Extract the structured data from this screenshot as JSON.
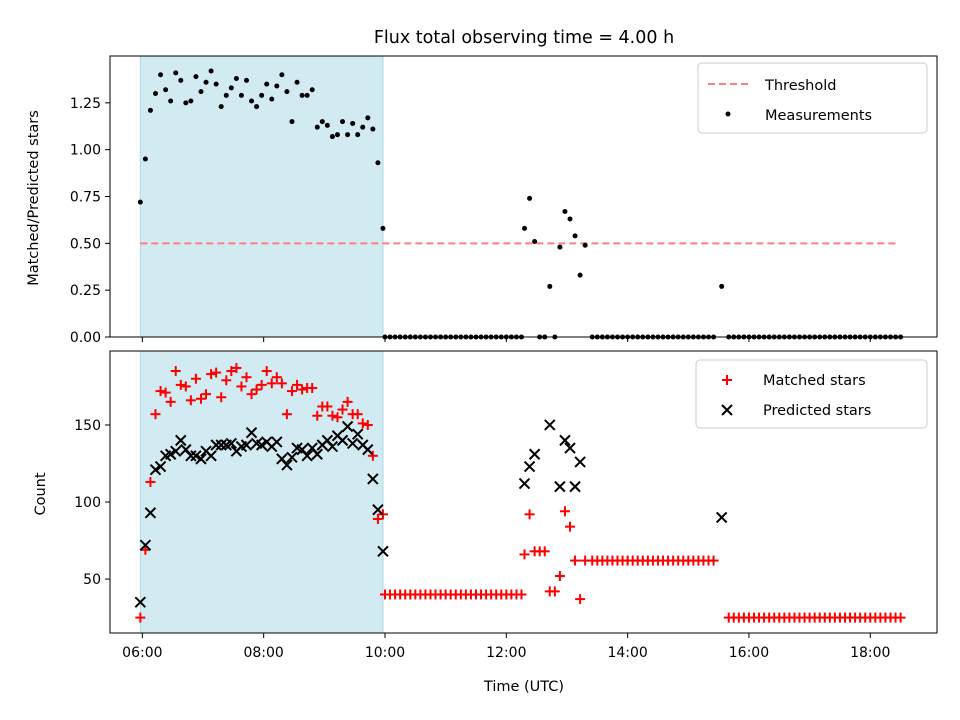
{
  "colors": {
    "shade": "#add8e6",
    "threshold": "#ff7f7f",
    "matched": "#ff0000",
    "predicted": "#000000",
    "measurement": "#000000"
  },
  "chart_data": [
    {
      "type": "scatter",
      "title": "Flux total observing time = 4.00 h",
      "ylabel": "Matched/Predicted stars",
      "xlabel": "",
      "xlim": [
        "05:28",
        "19:06"
      ],
      "ylim": [
        0,
        1.5
      ],
      "yticks": [
        "0.00",
        "0.25",
        "0.50",
        "0.75",
        "1.00",
        "1.25"
      ],
      "grid": false,
      "legend": "top-right",
      "shaded_span": [
        "05:58",
        "09:58"
      ],
      "threshold": {
        "name": "Threshold",
        "value": 0.5,
        "from": "05:58",
        "to": "18:28"
      },
      "series": [
        {
          "name": "Measurements",
          "x": [
            "05:58",
            "06:03",
            "06:08",
            "06:13",
            "06:18",
            "06:23",
            "06:28",
            "06:33",
            "06:38",
            "06:43",
            "06:48",
            "06:53",
            "06:58",
            "07:03",
            "07:08",
            "07:13",
            "07:18",
            "07:23",
            "07:28",
            "07:33",
            "07:38",
            "07:43",
            "07:48",
            "07:53",
            "07:58",
            "08:03",
            "08:08",
            "08:13",
            "08:18",
            "08:23",
            "08:28",
            "08:33",
            "08:38",
            "08:43",
            "08:48",
            "08:53",
            "08:58",
            "09:03",
            "09:08",
            "09:13",
            "09:18",
            "09:23",
            "09:28",
            "09:33",
            "09:38",
            "09:43",
            "09:48",
            "09:53",
            "09:58",
            "12:18",
            "12:23",
            "12:28",
            "12:33",
            "12:38",
            "12:43",
            "12:48",
            "12:53",
            "12:58",
            "13:03",
            "13:08",
            "13:13",
            "13:18",
            "15:33"
          ],
          "y": [
            0.72,
            0.95,
            1.21,
            1.3,
            1.4,
            1.32,
            1.26,
            1.41,
            1.37,
            1.25,
            1.26,
            1.39,
            1.31,
            1.36,
            1.42,
            1.35,
            1.23,
            1.29,
            1.33,
            1.38,
            1.29,
            1.37,
            1.26,
            1.23,
            1.29,
            1.35,
            1.27,
            1.34,
            1.4,
            1.31,
            1.15,
            1.36,
            1.29,
            1.29,
            1.32,
            1.12,
            1.15,
            1.13,
            1.07,
            1.08,
            1.15,
            1.08,
            1.14,
            1.08,
            1.12,
            1.17,
            1.11,
            0.93,
            0.58,
            0.58,
            0.74,
            0.51,
            0.0,
            0.0,
            0.27,
            0.0,
            0.48,
            0.67,
            0.63,
            0.54,
            0.33,
            0.49,
            0.27
          ],
          "zero_runs": [
            {
              "from": "10:00",
              "to": "12:15",
              "step_min": 5
            },
            {
              "from": "13:25",
              "to": "15:25",
              "step_min": 5
            },
            {
              "from": "15:40",
              "to": "18:30",
              "step_min": 5
            }
          ]
        }
      ]
    },
    {
      "type": "scatter",
      "title": "",
      "ylabel": "Count",
      "xlabel": "Time (UTC)",
      "xlim": [
        "05:28",
        "19:06"
      ],
      "ylim": [
        15,
        198
      ],
      "yticks": [
        "50",
        "100",
        "150"
      ],
      "xticks": [
        "06:00",
        "08:00",
        "10:00",
        "12:00",
        "14:00",
        "16:00",
        "18:00"
      ],
      "grid": false,
      "legend": "top-right",
      "shaded_span": [
        "05:58",
        "09:58"
      ],
      "series": [
        {
          "name": "Matched stars",
          "x": [
            "05:58",
            "06:03",
            "06:08",
            "06:13",
            "06:18",
            "06:23",
            "06:28",
            "06:33",
            "06:38",
            "06:43",
            "06:48",
            "06:53",
            "06:58",
            "07:03",
            "07:08",
            "07:13",
            "07:18",
            "07:23",
            "07:28",
            "07:33",
            "07:38",
            "07:43",
            "07:48",
            "07:53",
            "07:58",
            "08:03",
            "08:08",
            "08:13",
            "08:18",
            "08:23",
            "08:28",
            "08:33",
            "08:38",
            "08:43",
            "08:48",
            "08:53",
            "08:58",
            "09:03",
            "09:08",
            "09:13",
            "09:18",
            "09:23",
            "09:28",
            "09:33",
            "09:38",
            "09:43",
            "09:48",
            "09:53",
            "09:58",
            "12:18",
            "12:23",
            "12:28",
            "12:33",
            "12:38",
            "12:43",
            "12:48",
            "12:53",
            "12:58",
            "13:03",
            "13:08",
            "13:13",
            "13:18"
          ],
          "y": [
            25,
            69,
            113,
            157,
            172,
            171,
            165,
            185,
            176,
            175,
            166,
            180,
            167,
            170,
            183,
            184,
            168,
            179,
            185,
            187,
            175,
            181,
            170,
            173,
            176,
            185,
            177,
            181,
            177,
            157,
            172,
            176,
            173,
            174,
            174,
            156,
            162,
            162,
            156,
            155,
            160,
            165,
            157,
            157,
            151,
            150,
            130,
            89,
            92,
            66,
            92,
            68,
            68,
            68,
            42,
            42,
            52,
            94,
            84,
            62,
            37,
            62
          ],
          "flat_runs": [
            {
              "value": 40,
              "from": "10:00",
              "to": "12:15",
              "step_min": 5
            },
            {
              "value": 62,
              "from": "13:25",
              "to": "15:25",
              "step_min": 5
            },
            {
              "value": 25,
              "from": "15:40",
              "to": "18:30",
              "step_min": 5
            }
          ]
        },
        {
          "name": "Predicted stars",
          "x": [
            "05:58",
            "06:03",
            "06:08",
            "06:13",
            "06:18",
            "06:23",
            "06:28",
            "06:33",
            "06:38",
            "06:43",
            "06:48",
            "06:53",
            "06:58",
            "07:03",
            "07:08",
            "07:13",
            "07:18",
            "07:23",
            "07:28",
            "07:33",
            "07:38",
            "07:43",
            "07:48",
            "07:53",
            "07:58",
            "08:03",
            "08:08",
            "08:13",
            "08:18",
            "08:23",
            "08:28",
            "08:33",
            "08:38",
            "08:43",
            "08:48",
            "08:53",
            "08:58",
            "09:03",
            "09:08",
            "09:13",
            "09:18",
            "09:23",
            "09:28",
            "09:33",
            "09:38",
            "09:43",
            "09:48",
            "09:53",
            "09:58",
            "12:18",
            "12:23",
            "12:28",
            "12:43",
            "12:53",
            "12:58",
            "13:03",
            "13:08",
            "13:13",
            "15:33"
          ],
          "y": [
            35,
            72,
            93,
            121,
            123,
            130,
            131,
            133,
            140,
            134,
            130,
            130,
            128,
            133,
            130,
            137,
            137,
            137,
            138,
            133,
            136,
            137,
            145,
            138,
            137,
            139,
            136,
            139,
            128,
            124,
            129,
            135,
            134,
            130,
            135,
            131,
            137,
            140,
            136,
            143,
            140,
            149,
            138,
            144,
            137,
            134,
            115,
            95,
            68,
            112,
            123,
            131,
            150,
            110,
            140,
            135,
            110,
            126,
            90
          ]
        }
      ]
    }
  ]
}
